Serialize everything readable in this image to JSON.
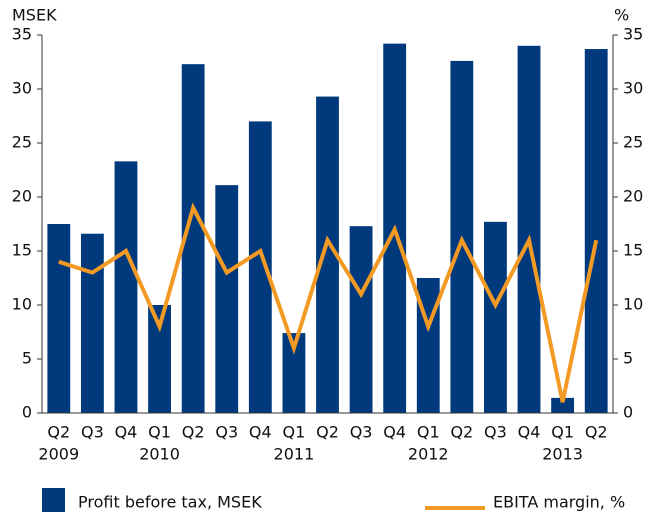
{
  "chart_data": {
    "type": "bar",
    "y_label": "MSEK",
    "y2_label": "%",
    "categories": [
      "Q2",
      "Q3",
      "Q4",
      "Q1",
      "Q2",
      "Q3",
      "Q4",
      "Q1",
      "Q2",
      "Q3",
      "Q4",
      "Q1",
      "Q2",
      "Q3",
      "Q4",
      "Q1",
      "Q2"
    ],
    "year_labels": [
      "2009",
      null,
      null,
      "2010",
      null,
      null,
      null,
      "2011",
      null,
      null,
      null,
      "2012",
      null,
      null,
      null,
      "2013",
      null
    ],
    "series": [
      {
        "name": "Profit before tax, MSEK",
        "type": "bar",
        "color": "#003a7d",
        "values": [
          17.5,
          16.6,
          23.3,
          10,
          32.3,
          21.1,
          27,
          7.4,
          29.3,
          17.3,
          34.2,
          12.5,
          32.6,
          17.7,
          34,
          1.4,
          33.7
        ]
      },
      {
        "name": "EBITA margin, %",
        "type": "line",
        "axis": "y2",
        "color": "#f39a25",
        "values": [
          14,
          13,
          15,
          8,
          19,
          13,
          15,
          6,
          16,
          11,
          17,
          8,
          16,
          10,
          16,
          1,
          16
        ]
      }
    ],
    "ylim": [
      0,
      35
    ],
    "yticks": [
      0,
      5,
      10,
      15,
      20,
      25,
      30,
      35
    ],
    "y2lim": [
      0,
      35
    ],
    "y2ticks": [
      0,
      5,
      10,
      15,
      20,
      25,
      30,
      35
    ]
  }
}
